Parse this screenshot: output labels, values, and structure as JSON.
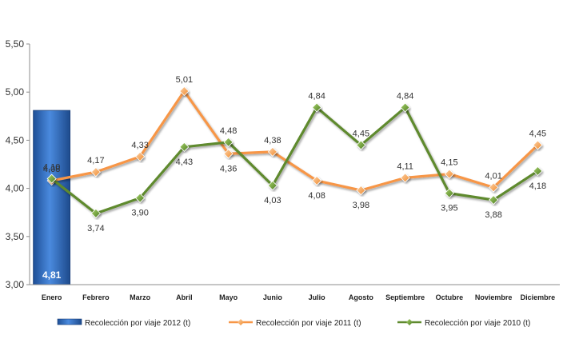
{
  "chart_data": {
    "type": "bar",
    "categories": [
      "Enero",
      "Febrero",
      "Marzo",
      "Abril",
      "Mayo",
      "Junio",
      "Julio",
      "Agosto",
      "Septiembre",
      "Octubre",
      "Noviembre",
      "Diciembre"
    ],
    "series": [
      {
        "name": "Recolección por viaje 2012 (t)",
        "type": "bar",
        "color": "#2f6fc4",
        "values": [
          4.81,
          null,
          null,
          null,
          null,
          null,
          null,
          null,
          null,
          null,
          null,
          null
        ],
        "labels": [
          "4,81",
          "",
          "",
          "",
          "",
          "",
          "",
          "",
          "",
          "",
          "",
          ""
        ]
      },
      {
        "name": "Recolección por viaje 2011 (t)",
        "type": "line",
        "color": "#f79646",
        "values": [
          4.08,
          4.17,
          4.33,
          5.01,
          4.36,
          4.38,
          4.08,
          3.98,
          4.11,
          4.15,
          4.01,
          4.45
        ],
        "labels": [
          "4,08",
          "4,17",
          "4,33",
          "5,01",
          "4,36",
          "4,38",
          "4,08",
          "3,98",
          "4,11",
          "4,15",
          "4,01",
          "4,45"
        ]
      },
      {
        "name": "Recolección por viaje 2010 (t)",
        "type": "line",
        "color": "#5f8a2e",
        "values": [
          4.1,
          3.74,
          3.9,
          4.43,
          4.48,
          4.03,
          4.84,
          4.45,
          4.84,
          3.95,
          3.88,
          4.18
        ],
        "labels": [
          "4,10",
          "3,74",
          "3,90",
          "4,43",
          "4,48",
          "4,03",
          "4,84",
          "4,45",
          "4,84",
          "3,95",
          "3,88",
          "4,18"
        ]
      }
    ],
    "y_ticks": [
      3.0,
      3.5,
      4.0,
      4.5,
      5.0,
      5.5
    ],
    "y_tick_labels": [
      "3,00",
      "3,50",
      "4,00",
      "4,50",
      "5,00",
      "5,50"
    ],
    "ylim": [
      3.0,
      5.5
    ],
    "grid": false,
    "legend_position": "bottom"
  }
}
